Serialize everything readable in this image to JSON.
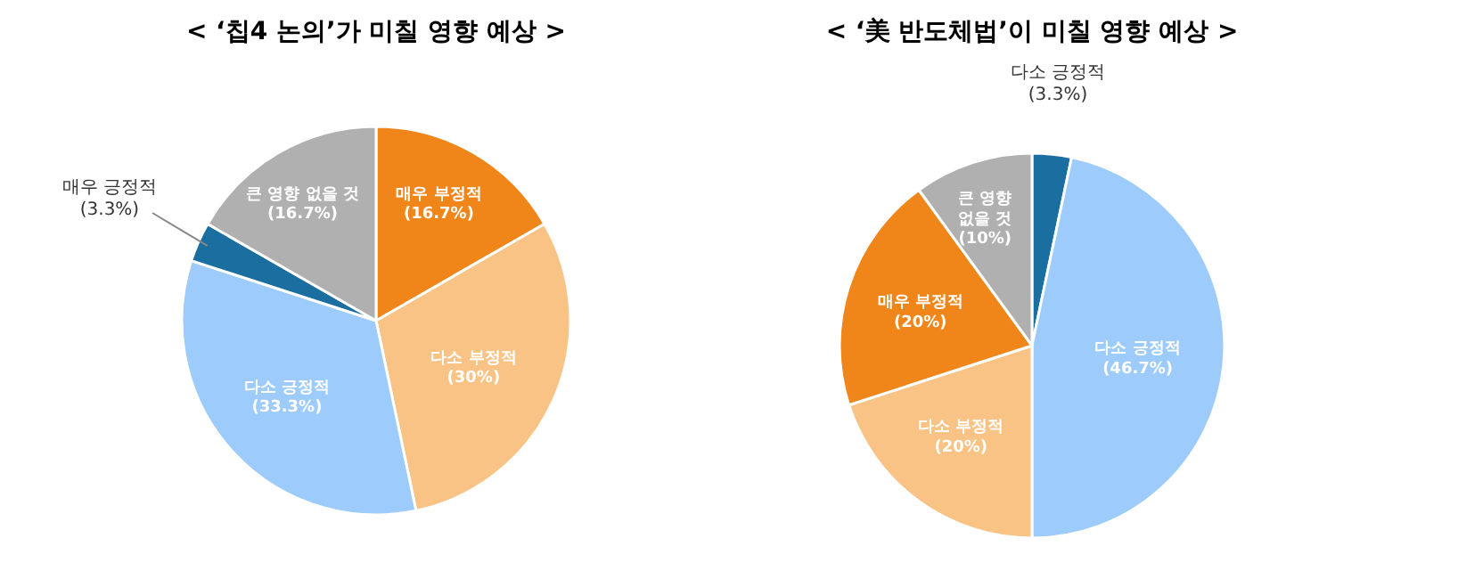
{
  "chart_data": [
    {
      "type": "pie",
      "title": "< ‘칩4 논의’가 미칠 영향 예상 >",
      "categories": [
        "매우 부정적",
        "다소 부정적",
        "다소 긍정적",
        "매우 긍정적",
        "큰 영향 없을 것"
      ],
      "values": [
        16.7,
        30,
        33.3,
        3.3,
        16.7
      ],
      "colors": [
        "#f0861a",
        "#f8c384",
        "#9dcbfb",
        "#1a6fa0",
        "#b0b0b0"
      ],
      "value_labels": [
        "(16.7%)",
        "(30%)",
        "(33.3%)",
        "(3.3%)",
        "(16.7%)"
      ]
    },
    {
      "type": "pie",
      "title": "< ‘美 반도체법’이 미칠 영향 예상 >",
      "categories": [
        "다소 긍정적",
        "다소 긍정적",
        "다소 부정적",
        "매우 부정적",
        "큰 영향\n없을 것"
      ],
      "values": [
        3.3,
        46.7,
        20,
        20,
        10
      ],
      "colors": [
        "#1a6fa0",
        "#9dcbfb",
        "#f8c384",
        "#f0861a",
        "#b0b0b0"
      ],
      "value_labels": [
        "(3.3%)",
        "(46.7%)",
        "(20%)",
        "(20%)",
        "(10%)"
      ]
    }
  ]
}
